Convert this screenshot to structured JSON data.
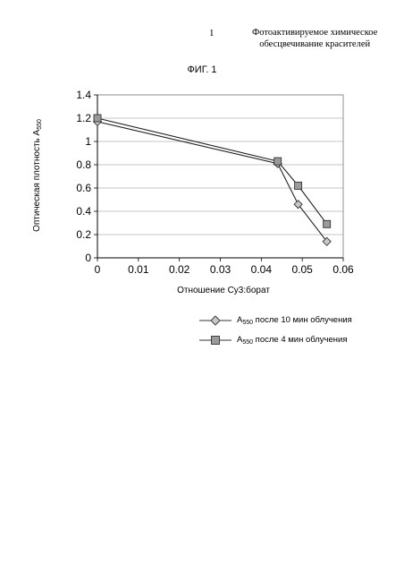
{
  "header": {
    "page_number": "1",
    "title_line1": "Фотоактивируемое химическое",
    "title_line2": "обесцвечивание красителей"
  },
  "figure_title": "ФИГ. 1",
  "chart_data": {
    "type": "line",
    "xlabel": "Отношение Су3:борат",
    "ylabel": "Оптическая плотность A",
    "ylabel_sub": "550",
    "xlim": [
      0,
      0.06
    ],
    "ylim": [
      0,
      1.4
    ],
    "xticks": [
      "0",
      "0.01",
      "0.02",
      "0.03",
      "0.04",
      "0.05",
      "0.06"
    ],
    "yticks": [
      "0",
      "0.2",
      "0.4",
      "0.6",
      "0.8",
      "1",
      "1.2",
      "1.4"
    ],
    "grid": "horizontal",
    "legend_position": "bottom",
    "series": [
      {
        "name_prefix": "A",
        "name_sub": "550",
        "name_suffix": " после 10 мин облучения",
        "marker": "diamond",
        "x": [
          0,
          0.044,
          0.049,
          0.056
        ],
        "y": [
          1.17,
          0.81,
          0.46,
          0.14
        ]
      },
      {
        "name_prefix": "A",
        "name_sub": "550",
        "name_suffix": " после 4 мин облучения",
        "marker": "square",
        "x": [
          0,
          0.044,
          0.049,
          0.056
        ],
        "y": [
          1.2,
          0.83,
          0.62,
          0.29
        ]
      }
    ]
  }
}
